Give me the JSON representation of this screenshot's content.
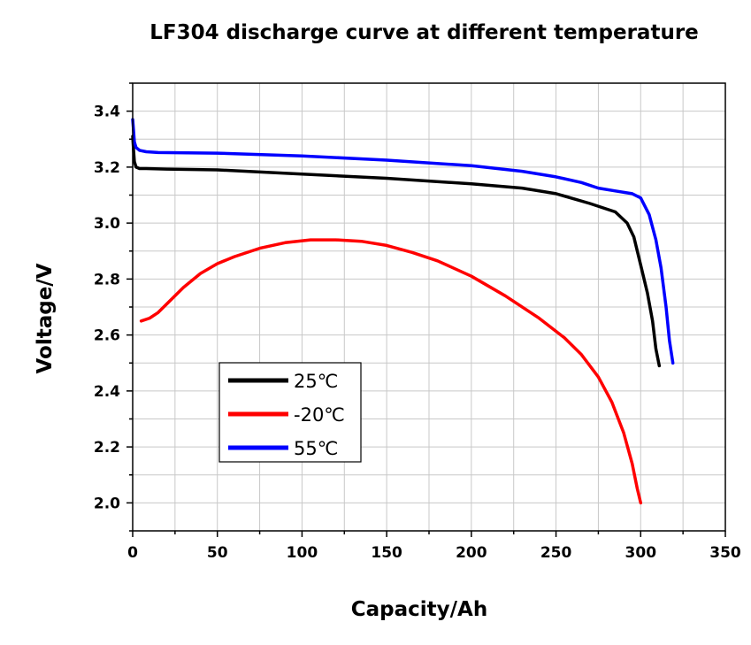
{
  "chart_data": {
    "type": "line",
    "title": "LF304 discharge curve at different temperature",
    "xlabel": "Capacity/Ah",
    "ylabel": "Voltage/V",
    "xlim": [
      0,
      350
    ],
    "ylim": [
      1.9,
      3.5
    ],
    "xticks": [
      0,
      50,
      100,
      150,
      200,
      250,
      300,
      350
    ],
    "yticks": [
      2.0,
      2.2,
      2.4,
      2.6,
      2.8,
      3.0,
      3.2,
      3.4
    ],
    "grid": true,
    "legend_position": "lower-left",
    "series": [
      {
        "name": "25℃",
        "color": "#000000",
        "x": [
          0,
          0.5,
          1,
          2,
          4,
          8,
          20,
          50,
          100,
          150,
          200,
          230,
          250,
          270,
          285,
          292,
          296,
          300,
          304,
          307,
          309,
          311
        ],
        "y": [
          3.31,
          3.26,
          3.22,
          3.2,
          3.195,
          3.195,
          3.193,
          3.19,
          3.175,
          3.16,
          3.14,
          3.125,
          3.105,
          3.07,
          3.04,
          3.0,
          2.95,
          2.85,
          2.75,
          2.65,
          2.55,
          2.49
        ]
      },
      {
        "name": "-20℃",
        "color": "#ff0000",
        "x": [
          5,
          10,
          15,
          20,
          30,
          40,
          50,
          60,
          75,
          90,
          105,
          120,
          135,
          150,
          165,
          180,
          200,
          220,
          240,
          255,
          265,
          275,
          283,
          290,
          295,
          298,
          300
        ],
        "y": [
          2.65,
          2.66,
          2.68,
          2.71,
          2.77,
          2.82,
          2.855,
          2.88,
          2.91,
          2.93,
          2.94,
          2.94,
          2.935,
          2.92,
          2.895,
          2.865,
          2.81,
          2.74,
          2.66,
          2.59,
          2.53,
          2.45,
          2.36,
          2.25,
          2.14,
          2.05,
          2.0
        ]
      },
      {
        "name": "55℃",
        "color": "#0000ff",
        "x": [
          0,
          0.5,
          1,
          2,
          4,
          8,
          15,
          50,
          100,
          150,
          200,
          230,
          250,
          265,
          275,
          285,
          295,
          300,
          305,
          309,
          312,
          315,
          317,
          319
        ],
        "y": [
          3.37,
          3.33,
          3.29,
          3.27,
          3.26,
          3.255,
          3.252,
          3.25,
          3.24,
          3.225,
          3.205,
          3.185,
          3.165,
          3.145,
          3.125,
          3.115,
          3.105,
          3.09,
          3.03,
          2.94,
          2.84,
          2.7,
          2.58,
          2.5
        ]
      }
    ]
  }
}
